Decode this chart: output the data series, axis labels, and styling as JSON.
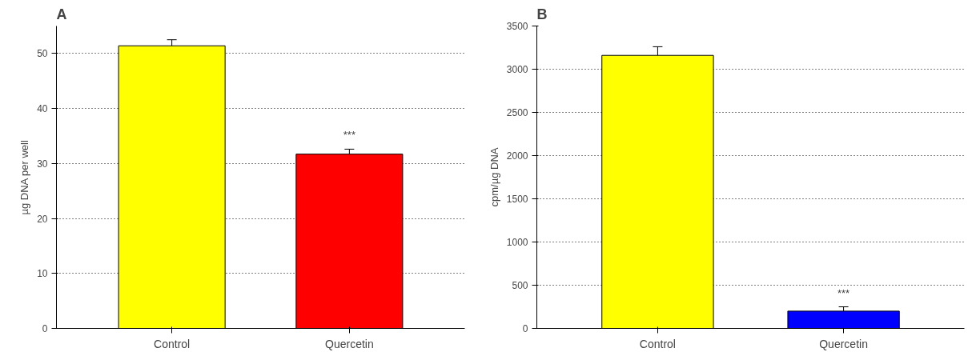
{
  "chart_data": [
    {
      "type": "bar",
      "title": "A",
      "ylabel": "µg DNA per well",
      "categories": [
        "Control",
        "Quercetin"
      ],
      "values": [
        51.4,
        31.7
      ],
      "colors": [
        "#ffff00",
        "#ff0000"
      ],
      "errors": [
        [
          51.4,
          52.5
        ],
        [
          31.7,
          32.6
        ]
      ],
      "ylim": [
        0,
        55
      ],
      "yticks": [
        0,
        10,
        20,
        30,
        40,
        50
      ],
      "grid": "y",
      "annotations": [
        "***"
      ]
    },
    {
      "type": "bar",
      "title": "B",
      "ylabel": "cpm/µg DNA",
      "categories": [
        "Control",
        "Quercetin"
      ],
      "values": [
        3160,
        200
      ],
      "colors": [
        "#ffff00",
        "#0000ff"
      ],
      "errors": [
        [
          3160,
          3260
        ],
        [
          200,
          250
        ]
      ],
      "ylim": [
        0,
        3500
      ],
      "yticks": [
        0,
        500,
        1000,
        1500,
        2000,
        2500,
        3000,
        3500
      ],
      "grid": "y",
      "annotations": [
        "***"
      ]
    }
  ]
}
